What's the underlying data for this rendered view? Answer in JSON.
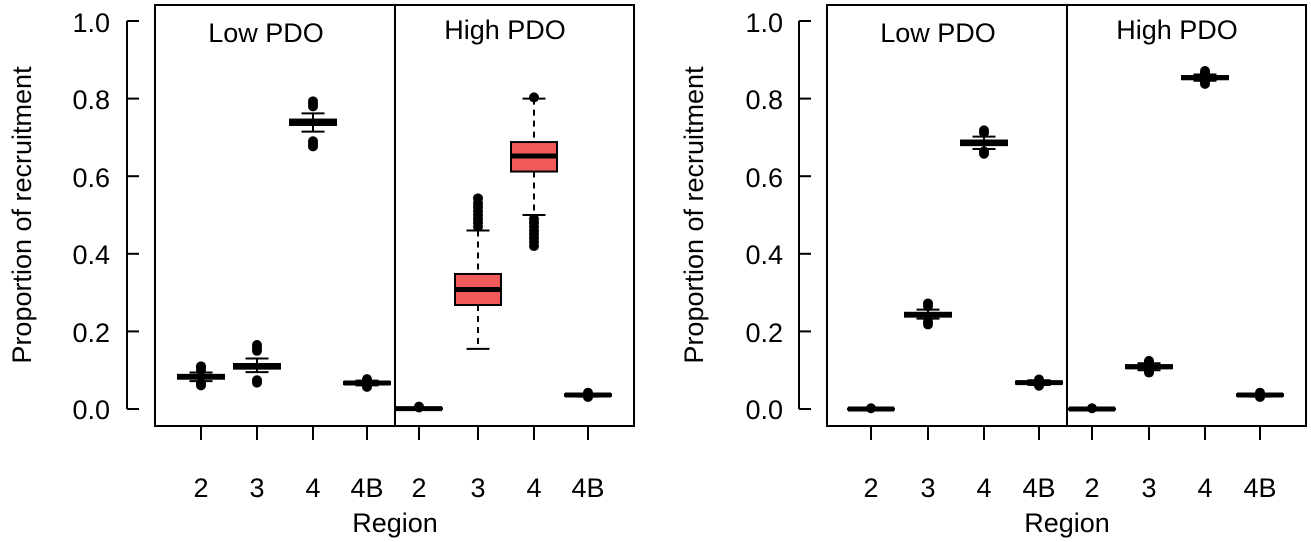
{
  "chart_data": [
    {
      "type": "box",
      "ylabel": "Proportion of recruitment",
      "xlabel": "Region",
      "ylim": [
        0,
        1
      ],
      "yticks": [
        "0.0",
        "0.2",
        "0.4",
        "0.6",
        "0.8",
        "1.0"
      ],
      "panels": [
        {
          "title": "Low PDO",
          "categories": [
            "2",
            "3",
            "4",
            "4B"
          ],
          "boxes": [
            {
              "q1": 0.078,
              "median": 0.083,
              "q3": 0.088,
              "whisker_low": 0.072,
              "whisker_high": 0.094,
              "outliers": [
                0.061,
                0.066,
                0.1,
                0.106,
                0.11
              ],
              "fill": "#ffffff"
            },
            {
              "q1": 0.104,
              "median": 0.11,
              "q3": 0.116,
              "whisker_low": 0.095,
              "whisker_high": 0.13,
              "outliers": [
                0.068,
                0.074,
                0.15,
                0.158,
                0.165
              ],
              "fill": "#ffffff"
            },
            {
              "q1": 0.732,
              "median": 0.739,
              "q3": 0.746,
              "whisker_low": 0.715,
              "whisker_high": 0.762,
              "outliers": [
                0.677,
                0.684,
                0.69,
                0.78,
                0.787,
                0.793
              ],
              "fill": "#ffffff"
            },
            {
              "q1": 0.064,
              "median": 0.067,
              "q3": 0.07,
              "whisker_low": 0.061,
              "whisker_high": 0.073,
              "outliers": [
                0.057,
                0.06,
                0.074,
                0.077
              ],
              "fill": "#ffffff"
            }
          ]
        },
        {
          "title": "High PDO",
          "categories": [
            "2",
            "3",
            "4",
            "4B"
          ],
          "boxes": [
            {
              "q1": 0.0,
              "median": 0.001,
              "q3": 0.002,
              "whisker_low": 0.0,
              "whisker_high": 0.003,
              "outliers": [
                0.004,
                0.006
              ],
              "fill": "#ffffff"
            },
            {
              "q1": 0.268,
              "median": 0.308,
              "q3": 0.348,
              "whisker_low": 0.155,
              "whisker_high": 0.46,
              "outliers": [
                0.47,
                0.48,
                0.49,
                0.5,
                0.51,
                0.52,
                0.53,
                0.543
              ],
              "fill": "#f05a5a"
            },
            {
              "q1": 0.612,
              "median": 0.652,
              "q3": 0.688,
              "whisker_low": 0.5,
              "whisker_high": 0.8,
              "outliers": [
                0.42,
                0.43,
                0.44,
                0.45,
                0.46,
                0.47,
                0.48,
                0.49,
                0.803
              ],
              "fill": "#f05a5a"
            },
            {
              "q1": 0.034,
              "median": 0.036,
              "q3": 0.038,
              "whisker_low": 0.032,
              "whisker_high": 0.04,
              "outliers": [
                0.031,
                0.042
              ],
              "fill": "#ffffff"
            }
          ]
        }
      ]
    },
    {
      "type": "box",
      "ylabel": "Proportion of recruitment",
      "xlabel": "Region",
      "ylim": [
        0,
        1
      ],
      "yticks": [
        "0.0",
        "0.2",
        "0.4",
        "0.6",
        "0.8",
        "1.0"
      ],
      "panels": [
        {
          "title": "Low PDO",
          "categories": [
            "2",
            "3",
            "4",
            "4B"
          ],
          "boxes": [
            {
              "q1": -0.001,
              "median": 0.0,
              "q3": 0.001,
              "whisker_low": -0.002,
              "whisker_high": 0.002,
              "outliers": [
                0.002
              ],
              "fill": "#ffffff"
            },
            {
              "q1": 0.238,
              "median": 0.243,
              "q3": 0.248,
              "whisker_low": 0.233,
              "whisker_high": 0.256,
              "outliers": [
                0.218,
                0.225,
                0.265,
                0.272
              ],
              "fill": "#ffffff"
            },
            {
              "q1": 0.68,
              "median": 0.686,
              "q3": 0.692,
              "whisker_low": 0.67,
              "whisker_high": 0.702,
              "outliers": [
                0.658,
                0.664,
                0.712,
                0.718
              ],
              "fill": "#ffffff"
            },
            {
              "q1": 0.065,
              "median": 0.068,
              "q3": 0.071,
              "whisker_low": 0.062,
              "whisker_high": 0.074,
              "outliers": [
                0.06,
                0.076
              ],
              "fill": "#ffffff"
            }
          ]
        },
        {
          "title": "High PDO",
          "categories": [
            "2",
            "3",
            "4",
            "4B"
          ],
          "boxes": [
            {
              "q1": -0.001,
              "median": 0.0,
              "q3": 0.001,
              "whisker_low": -0.002,
              "whisker_high": 0.002,
              "outliers": [
                0.002
              ],
              "fill": "#ffffff"
            },
            {
              "q1": 0.105,
              "median": 0.109,
              "q3": 0.113,
              "whisker_low": 0.1,
              "whisker_high": 0.118,
              "outliers": [
                0.094,
                0.098,
                0.12,
                0.124
              ],
              "fill": "#ffffff"
            },
            {
              "q1": 0.85,
              "median": 0.854,
              "q3": 0.858,
              "whisker_low": 0.846,
              "whisker_high": 0.862,
              "outliers": [
                0.838,
                0.842,
                0.866,
                0.871
              ],
              "fill": "#ffffff"
            },
            {
              "q1": 0.034,
              "median": 0.036,
              "q3": 0.038,
              "whisker_low": 0.032,
              "whisker_high": 0.04,
              "outliers": [
                0.031,
                0.042
              ],
              "fill": "#ffffff"
            }
          ]
        }
      ]
    }
  ]
}
